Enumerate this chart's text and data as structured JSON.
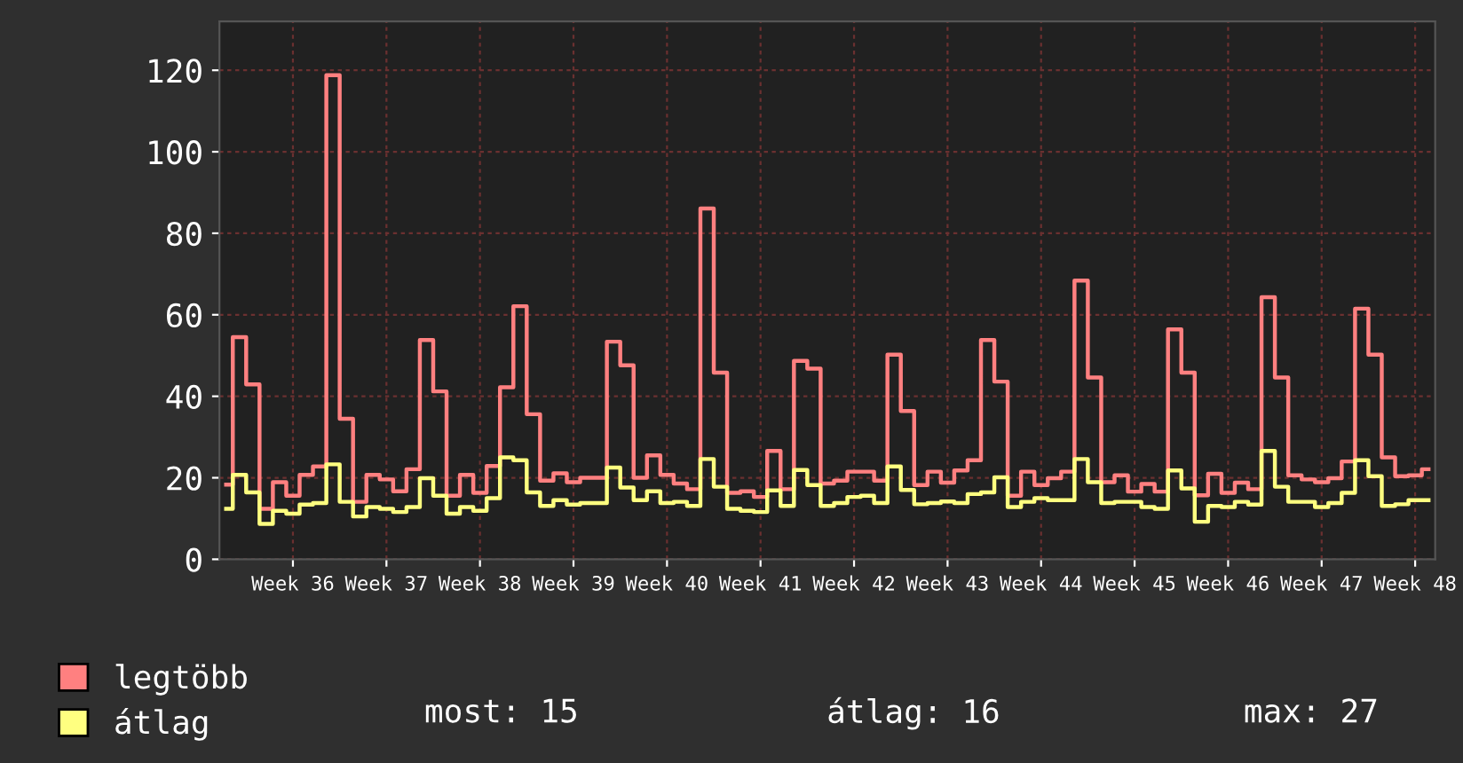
{
  "chart_data": {
    "type": "step",
    "categories": [
      null,
      null,
      null,
      null,
      null,
      "Week 36",
      null,
      null,
      null,
      null,
      null,
      null,
      "Week 37",
      null,
      null,
      null,
      null,
      null,
      null,
      "Week 38",
      null,
      null,
      null,
      null,
      null,
      null,
      "Week 39",
      null,
      null,
      null,
      null,
      null,
      null,
      "Week 40",
      null,
      null,
      null,
      null,
      null,
      null,
      "Week 41",
      null,
      null,
      null,
      null,
      null,
      null,
      "Week 42",
      null,
      null,
      null,
      null,
      null,
      null,
      "Week 43",
      null,
      null,
      null,
      null,
      null,
      null,
      "Week 44",
      null,
      null,
      null,
      null,
      null,
      null,
      "Week 45",
      null,
      null,
      null,
      null,
      null,
      null,
      "Week 46",
      null,
      null,
      null,
      null,
      null,
      null,
      "Week 47",
      null,
      null,
      null,
      null,
      null,
      null,
      "Week 48",
      null
    ],
    "series": [
      {
        "name": "legtöbb",
        "color": "#ff8080",
        "values": [
          18.3,
          54.5,
          42.9,
          12.4,
          18.9,
          15.6,
          20.7,
          22.8,
          118.8,
          34.5,
          14.1,
          20.7,
          19.6,
          16.7,
          22.1,
          53.8,
          41.2,
          15.6,
          20.7,
          16.3,
          22.9,
          42.2,
          62.1,
          35.6,
          19.3,
          21.1,
          18.9,
          20.0,
          20.0,
          53.4,
          47.6,
          20.0,
          25.5,
          20.7,
          18.6,
          17.2,
          86.1,
          45.8,
          16.3,
          16.7,
          15.3,
          26.6,
          17.2,
          48.7,
          46.8,
          18.6,
          19.3,
          21.5,
          21.5,
          19.3,
          50.2,
          36.4,
          18.2,
          21.5,
          18.8,
          21.8,
          24.3,
          53.8,
          43.6,
          15.6,
          21.5,
          18.2,
          19.9,
          21.5,
          68.4,
          44.6,
          18.9,
          20.6,
          16.6,
          18.5,
          16.6,
          56.4,
          45.8,
          15.7,
          21.0,
          16.3,
          18.8,
          17.2,
          64.3,
          44.6,
          20.6,
          19.6,
          18.9,
          19.9,
          24.0,
          61.5,
          50.2,
          25.0,
          20.4,
          20.6,
          22.1
        ]
      },
      {
        "name": "átlag",
        "color": "#ffff80",
        "values": [
          12.4,
          20.7,
          16.4,
          8.7,
          11.9,
          11.2,
          13.4,
          13.8,
          23.3,
          14.1,
          10.5,
          12.8,
          12.4,
          11.6,
          12.8,
          19.9,
          15.6,
          11.2,
          12.8,
          11.9,
          15.0,
          25.0,
          24.3,
          16.4,
          13.1,
          14.5,
          13.4,
          13.8,
          13.8,
          22.5,
          17.6,
          14.5,
          16.7,
          13.8,
          14.1,
          13.1,
          24.6,
          17.8,
          12.4,
          11.9,
          11.6,
          16.9,
          13.1,
          21.9,
          18.2,
          13.1,
          13.8,
          15.3,
          15.6,
          13.8,
          22.8,
          17.0,
          13.5,
          13.8,
          14.2,
          13.8,
          16.0,
          16.4,
          20.1,
          12.8,
          14.1,
          15.0,
          14.5,
          14.5,
          24.6,
          18.9,
          13.8,
          14.1,
          14.1,
          12.8,
          12.4,
          21.8,
          17.4,
          9.2,
          13.1,
          12.8,
          14.1,
          13.4,
          26.6,
          17.8,
          14.1,
          14.1,
          12.8,
          13.8,
          16.3,
          24.3,
          20.4,
          13.1,
          13.5,
          14.5,
          14.5
        ]
      }
    ],
    "ylim": [
      0,
      132
    ],
    "yticks": [
      0,
      20,
      40,
      60,
      80,
      100,
      120
    ],
    "grid": true,
    "legend": "bottom left",
    "annotations": [
      "most: 15",
      "átlag: 16",
      "max: 27"
    ]
  }
}
